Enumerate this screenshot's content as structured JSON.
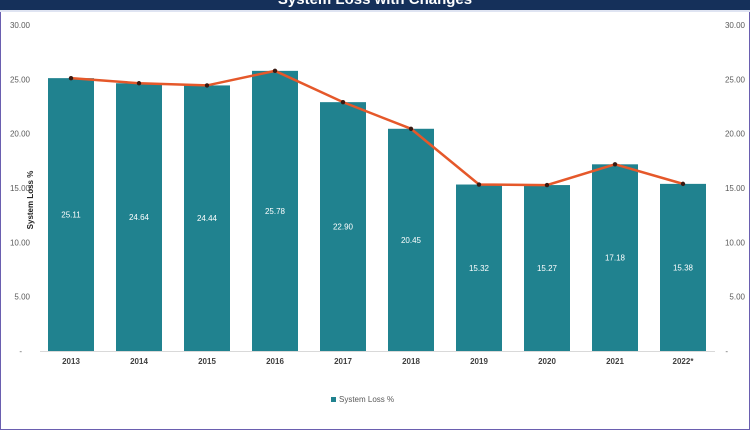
{
  "chart_data": {
    "type": "bar",
    "title": "System Loss with Changes",
    "ylabel": "System Loss %",
    "xlabel": "",
    "ylim": [
      0,
      30
    ],
    "yticks": [
      "-",
      "5.00",
      "10.00",
      "15.00",
      "20.00",
      "25.00",
      "30.00"
    ],
    "categories": [
      "2013",
      "2014",
      "2015",
      "2016",
      "2017",
      "2018",
      "2019",
      "2020",
      "2021",
      "2022*"
    ],
    "series": [
      {
        "name": "System Loss %",
        "type": "bar",
        "color": "#20828f",
        "values": [
          25.11,
          24.64,
          24.44,
          25.78,
          22.9,
          20.45,
          15.32,
          15.27,
          17.18,
          15.38
        ],
        "labels": [
          "25.11",
          "24.64",
          "24.44",
          "25.78",
          "22.90",
          "20.45",
          "15.32",
          "15.27",
          "17.18",
          "15.38"
        ]
      },
      {
        "name": "Trend",
        "type": "line",
        "color": "#e5582a",
        "values": [
          25.11,
          24.64,
          24.44,
          25.78,
          22.9,
          20.45,
          15.32,
          15.27,
          17.18,
          15.38
        ]
      }
    ],
    "legend": {
      "position": "bottom",
      "label": "System Loss %"
    },
    "grid": false
  }
}
